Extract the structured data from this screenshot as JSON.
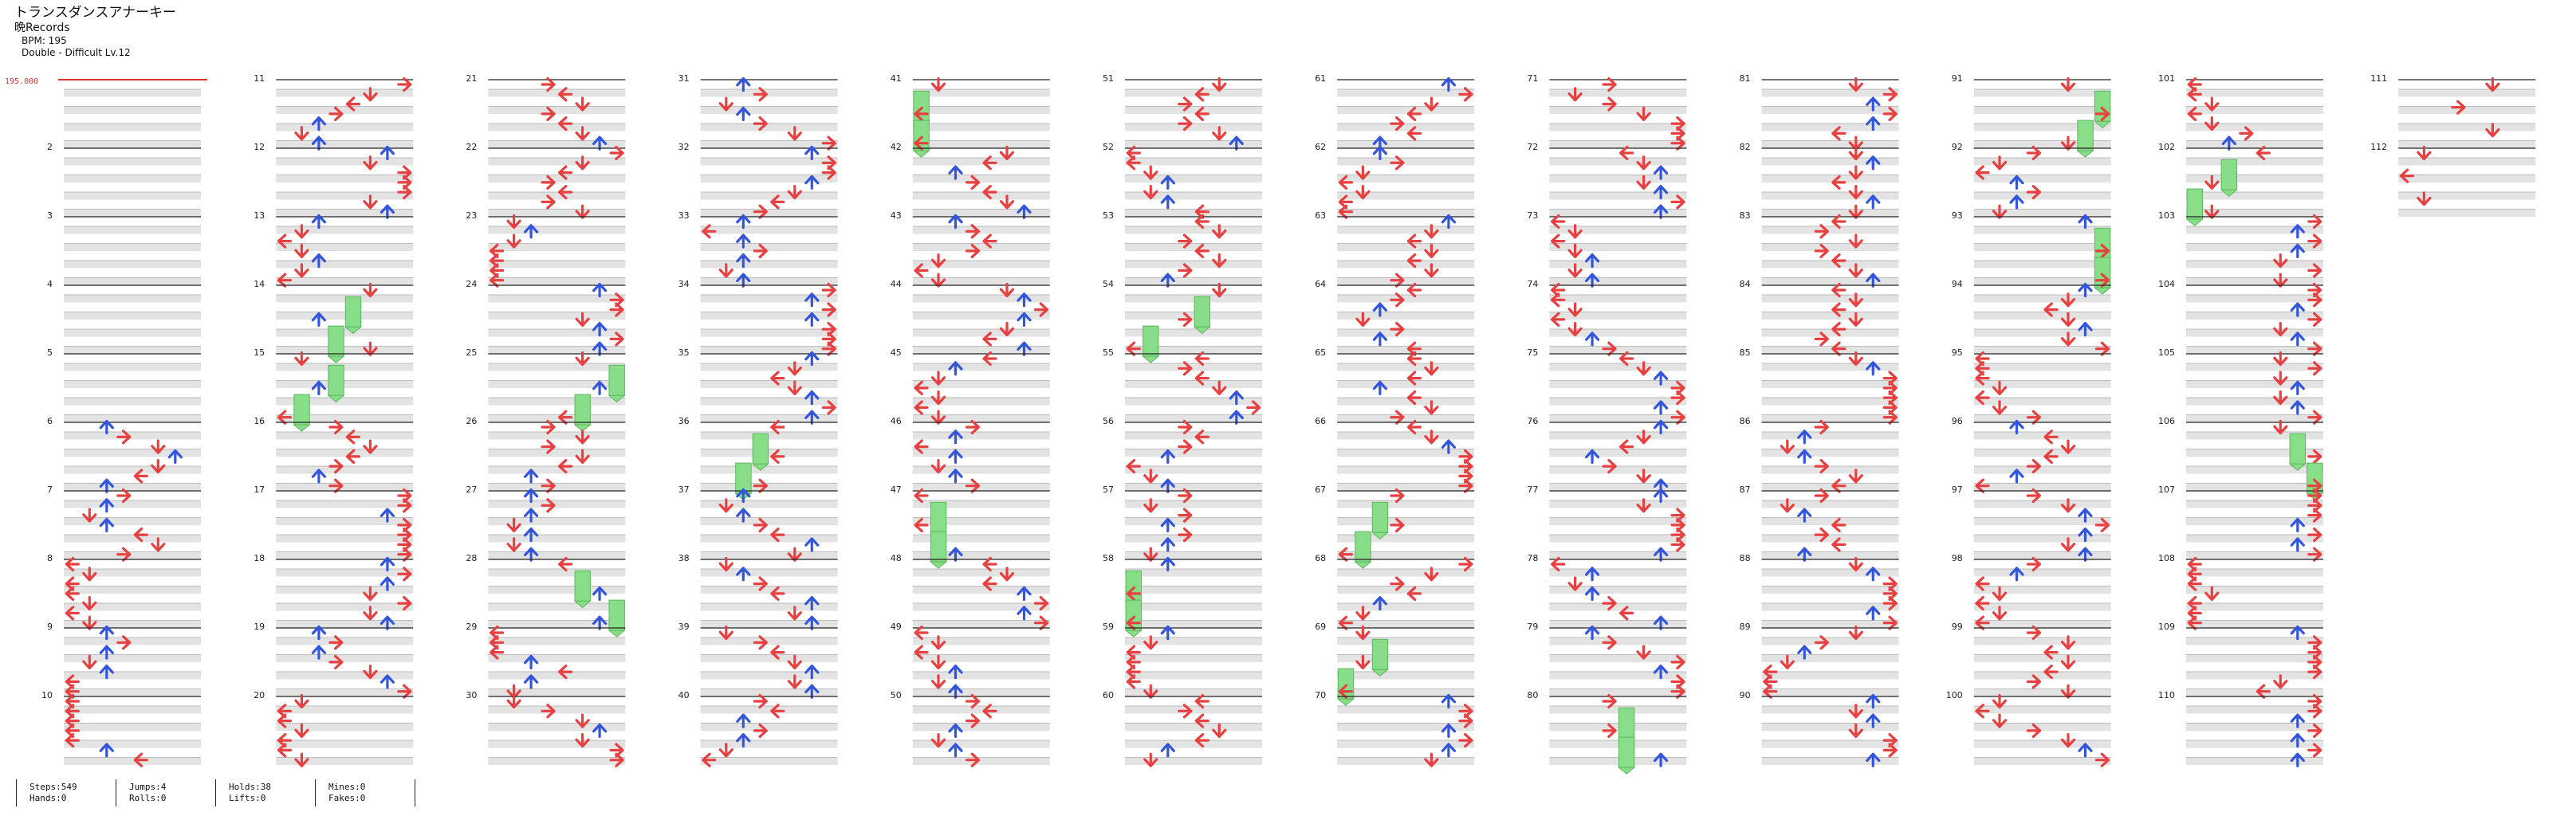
{
  "song": {
    "title": "トランスダンスアナーキー",
    "artist": "晩Records",
    "bpm_text": "BPM: 195",
    "difficulty_text": "Double - Difficult Lv.12"
  },
  "bpm_marker": "195.000",
  "colors": {
    "stop_marker": "#e03030",
    "left_arrow": "#e84040",
    "right_arrow": "#e84040",
    "down_arrow": "#e84040",
    "up_arrow": "#3355dd",
    "hold": "#88dd88",
    "band": "#e3e3e3",
    "measure_line": "#222222"
  },
  "chart_layout": {
    "columns": 12,
    "measures_per_column": 10,
    "total_measures": 112,
    "first_measure_label_number": 2
  },
  "stats": [
    {
      "line1": "Steps:549",
      "line2": "Hands:0"
    },
    {
      "line1": "Jumps:4",
      "line2": "Rolls:0"
    },
    {
      "line1": "Holds:38",
      "line2": "Lifts:0"
    },
    {
      "line1": "Mines:0",
      "line2": "Fakes:0"
    }
  ]
}
